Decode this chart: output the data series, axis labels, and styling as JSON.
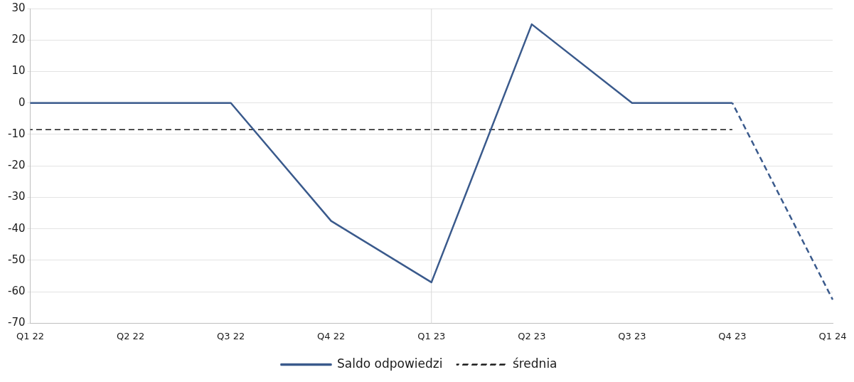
{
  "chart_data": {
    "type": "line",
    "categories": [
      "Q1 22",
      "Q2 22",
      "Q3 22",
      "Q4 22",
      "Q1 23",
      "Q2 23",
      "Q3 23",
      "Q4 23",
      "Q1 24"
    ],
    "series": [
      {
        "name": "Saldo odpowiedzi",
        "color": "#3a5a8c",
        "values": [
          0,
          0,
          0,
          -37.5,
          -57,
          25,
          0,
          0,
          null
        ],
        "line_style": "solid"
      },
      {
        "color": "#3a5a8c",
        "values": [
          null,
          null,
          null,
          null,
          null,
          null,
          null,
          0,
          -62.5
        ],
        "line_style": "dashed"
      },
      {
        "name": "średnia",
        "color": "#1a1a1a",
        "values": [
          -8.5,
          -8.5,
          -8.5,
          -8.5,
          -8.5,
          -8.5,
          -8.5,
          -8.5,
          null
        ],
        "line_style": "dashed"
      }
    ],
    "ylim": [
      -70,
      30
    ],
    "yticks": [
      -70,
      -60,
      -50,
      -40,
      -30,
      -20,
      -10,
      0,
      10,
      20,
      30
    ],
    "ref_lines": [
      {
        "axis": "x",
        "value": "Q1 23",
        "color": "#d9d9d9"
      }
    ],
    "grid": "y",
    "legend": "bottom",
    "marker": "none"
  }
}
